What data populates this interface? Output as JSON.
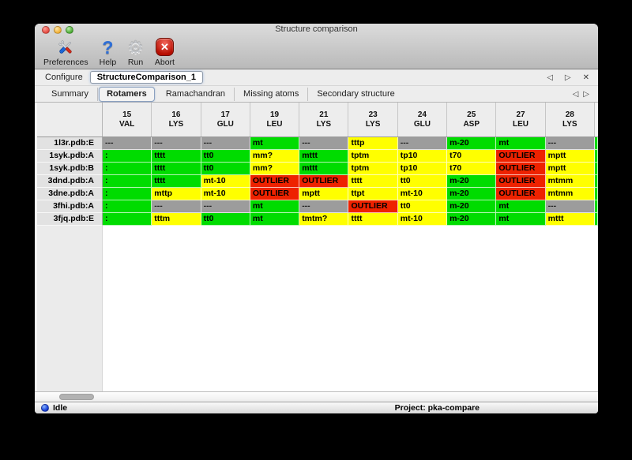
{
  "window": {
    "title": "Structure comparison"
  },
  "toolbar": {
    "items": [
      {
        "label": "Preferences",
        "icon": "tools-icon"
      },
      {
        "label": "Help",
        "icon": "question-mark-icon",
        "glyph": "?"
      },
      {
        "label": "Run",
        "icon": "gear-icon",
        "glyph": "⚙"
      },
      {
        "label": "Abort",
        "icon": "abort-icon",
        "glyph": "✕"
      }
    ]
  },
  "configure": {
    "label": "Configure",
    "value": "StructureComparison_1"
  },
  "nav": {
    "prev": "◁",
    "next": "▷",
    "close": "✕"
  },
  "tabs": {
    "items": [
      "Summary",
      "Rotamers",
      "Ramachandran",
      "Missing atoms",
      "Secondary structure"
    ],
    "active_index": 1
  },
  "rotamer_table": {
    "columns": [
      {
        "num": "15",
        "res": "VAL"
      },
      {
        "num": "16",
        "res": "LYS"
      },
      {
        "num": "17",
        "res": "GLU"
      },
      {
        "num": "19",
        "res": "LEU"
      },
      {
        "num": "21",
        "res": "LYS"
      },
      {
        "num": "23",
        "res": "LYS"
      },
      {
        "num": "24",
        "res": "GLU"
      },
      {
        "num": "25",
        "res": "ASP"
      },
      {
        "num": "27",
        "res": "LEU"
      },
      {
        "num": "28",
        "res": "LYS"
      }
    ],
    "status_colors": {
      "ok": "#00dc00",
      "warn": "#ffff00",
      "bad": "#ee2200",
      "na": "#9c9c9c"
    },
    "rows": [
      {
        "label": "1l3r.pdb:E",
        "cells": [
          [
            "---",
            "na"
          ],
          [
            "---",
            "na"
          ],
          [
            "---",
            "na"
          ],
          [
            "mt",
            "ok"
          ],
          [
            "---",
            "na"
          ],
          [
            "tttp",
            "warn"
          ],
          [
            "---",
            "na"
          ],
          [
            "m-20",
            "ok"
          ],
          [
            "mt",
            "ok"
          ],
          [
            "---",
            "na"
          ],
          [
            "",
            "ok"
          ]
        ]
      },
      {
        "label": "1syk.pdb:A",
        "cells": [
          [
            ":",
            "ok"
          ],
          [
            "tttt",
            "ok"
          ],
          [
            "tt0",
            "ok"
          ],
          [
            "mm?",
            "warn"
          ],
          [
            "mttt",
            "ok"
          ],
          [
            "tptm",
            "warn"
          ],
          [
            "tp10",
            "warn"
          ],
          [
            "t70",
            "warn"
          ],
          [
            "OUTLIER",
            "bad"
          ],
          [
            "mptt",
            "warn"
          ],
          [
            "",
            "ok"
          ]
        ]
      },
      {
        "label": "1syk.pdb:B",
        "cells": [
          [
            ":",
            "ok"
          ],
          [
            "tttt",
            "ok"
          ],
          [
            "tt0",
            "ok"
          ],
          [
            "mm?",
            "warn"
          ],
          [
            "mttt",
            "ok"
          ],
          [
            "tptm",
            "warn"
          ],
          [
            "tp10",
            "warn"
          ],
          [
            "t70",
            "warn"
          ],
          [
            "OUTLIER",
            "bad"
          ],
          [
            "mptt",
            "warn"
          ],
          [
            "",
            "ok"
          ]
        ]
      },
      {
        "label": "3dnd.pdb:A",
        "cells": [
          [
            ":",
            "ok"
          ],
          [
            "tttt",
            "ok"
          ],
          [
            "mt-10",
            "warn"
          ],
          [
            "OUTLIER",
            "bad"
          ],
          [
            "OUTLIER",
            "bad"
          ],
          [
            "tttt",
            "warn"
          ],
          [
            "tt0",
            "warn"
          ],
          [
            "m-20",
            "ok"
          ],
          [
            "OUTLIER",
            "bad"
          ],
          [
            "mtmm",
            "warn"
          ],
          [
            "",
            "ok"
          ]
        ]
      },
      {
        "label": "3dne.pdb:A",
        "cells": [
          [
            ":",
            "ok"
          ],
          [
            "mttp",
            "warn"
          ],
          [
            "mt-10",
            "warn"
          ],
          [
            "OUTLIER",
            "bad"
          ],
          [
            "mptt",
            "warn"
          ],
          [
            "ttpt",
            "warn"
          ],
          [
            "mt-10",
            "warn"
          ],
          [
            "m-20",
            "ok"
          ],
          [
            "OUTLIER",
            "bad"
          ],
          [
            "mtmm",
            "warn"
          ],
          [
            "",
            "ok"
          ]
        ]
      },
      {
        "label": "3fhi.pdb:A",
        "cells": [
          [
            ":",
            "ok"
          ],
          [
            "---",
            "na"
          ],
          [
            "---",
            "na"
          ],
          [
            "mt",
            "ok"
          ],
          [
            "---",
            "na"
          ],
          [
            "OUTLIER",
            "bad"
          ],
          [
            "tt0",
            "warn"
          ],
          [
            "m-20",
            "ok"
          ],
          [
            "mt",
            "ok"
          ],
          [
            "---",
            "na"
          ],
          [
            "",
            "ok"
          ]
        ]
      },
      {
        "label": "3fjq.pdb:E",
        "cells": [
          [
            ":",
            "ok"
          ],
          [
            "tttm",
            "warn"
          ],
          [
            "tt0",
            "ok"
          ],
          [
            "mt",
            "ok"
          ],
          [
            "tmtm?",
            "warn"
          ],
          [
            "tttt",
            "warn"
          ],
          [
            "mt-10",
            "warn"
          ],
          [
            "m-20",
            "ok"
          ],
          [
            "mt",
            "ok"
          ],
          [
            "mttt",
            "warn"
          ],
          [
            "",
            "ok"
          ]
        ]
      }
    ]
  },
  "statusbar": {
    "status": "Idle",
    "project": "Project: pka-compare"
  }
}
